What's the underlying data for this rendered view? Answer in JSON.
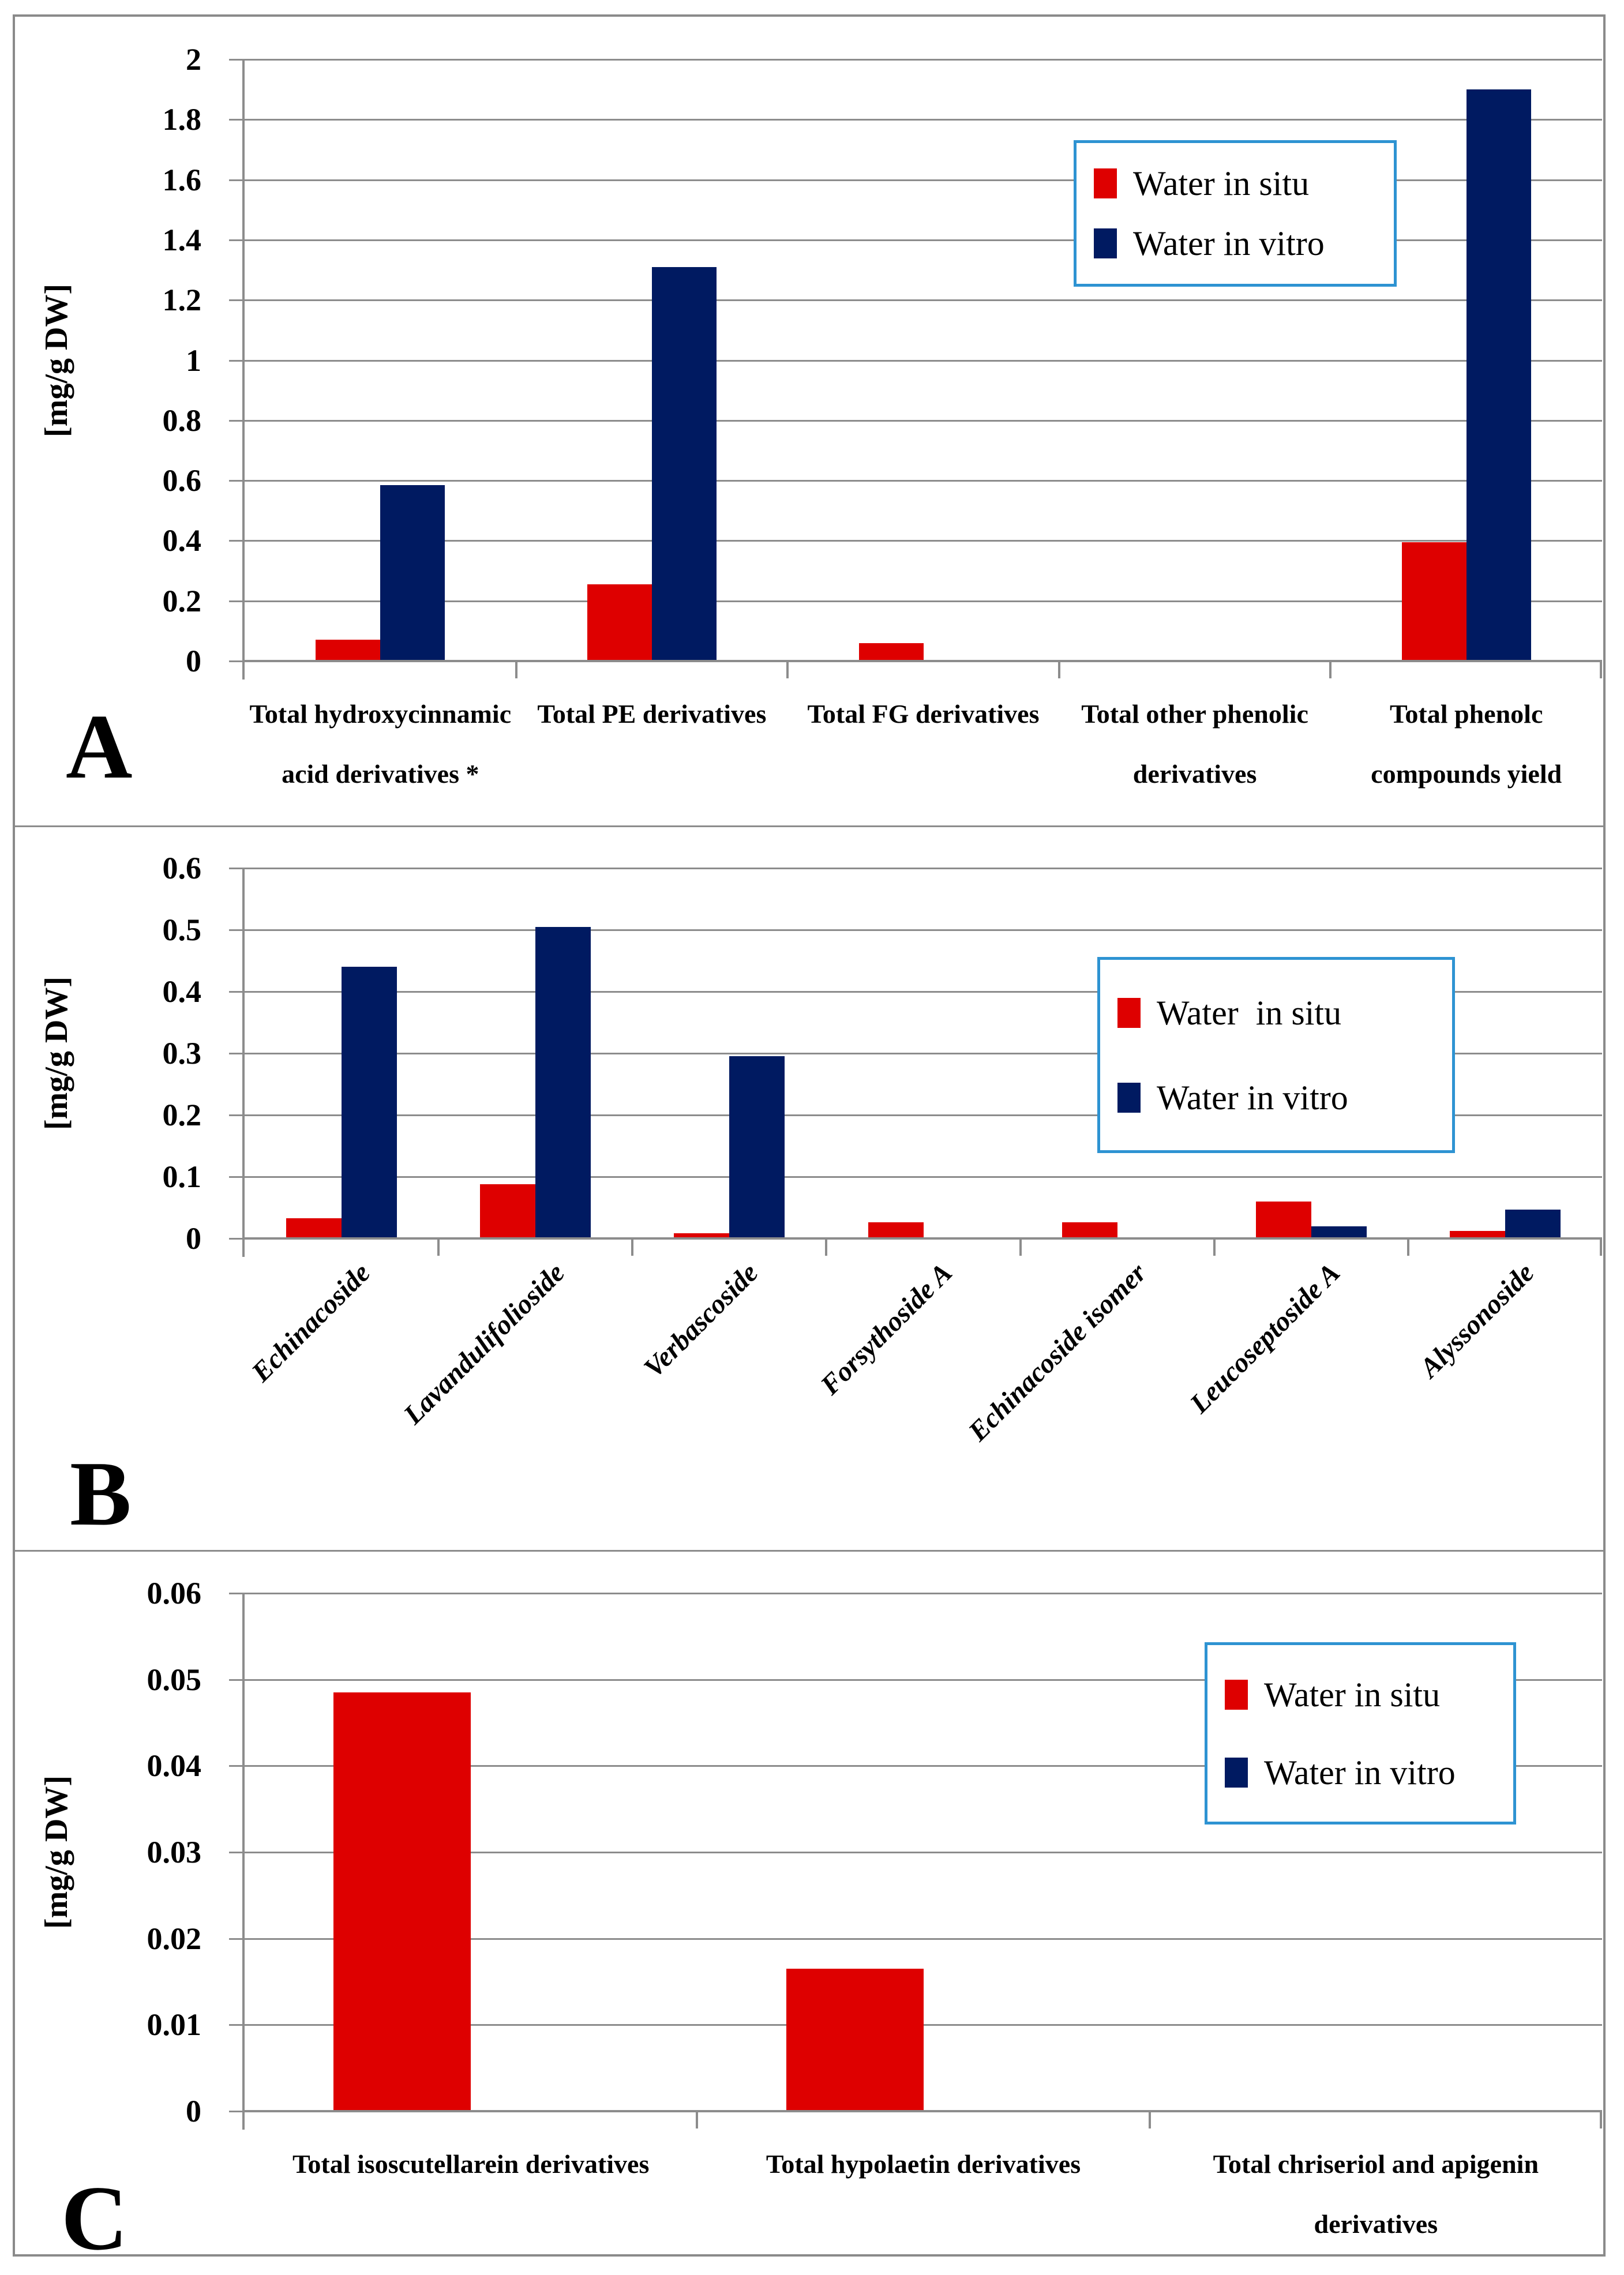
{
  "colors": {
    "in_situ": "#DE0000",
    "in_vitro": "#001A61",
    "gridline": "#8C8C8C",
    "frame_border": "#8A8A8A",
    "legend_border": "#2E93D2"
  },
  "chart_data": [
    {
      "type": "bar",
      "panel_letter": "A",
      "title": "",
      "ylabel": "[mg/g DW]",
      "xlabel": "",
      "ylim": [
        0,
        2
      ],
      "grid": true,
      "y_tick_labels": [
        "2",
        "1.8",
        "1.6",
        "1.4",
        "1.2",
        "1",
        "0.8",
        "0.6",
        "0.4",
        "0.2",
        "0"
      ],
      "categories": [
        "Total hydroxycinnamic acid derivatives *",
        "Total PE derivatives",
        "Total FG derivatives",
        "Total other phenolic derivatives",
        "Total phenolc compounds yield"
      ],
      "series": [
        {
          "name": "Water in situ",
          "values": [
            0.07,
            0.255,
            0.06,
            0,
            0.395
          ]
        },
        {
          "name": "Water in vitro",
          "values": [
            0.585,
            1.31,
            0,
            0,
            1.9
          ]
        }
      ],
      "legend": {
        "position": "top-right-inset",
        "items": [
          {
            "label": "Water in situ",
            "color": "#DE0000"
          },
          {
            "label": "Water in vitro",
            "color": "#001A61"
          }
        ]
      }
    },
    {
      "type": "bar",
      "panel_letter": "B",
      "title": "",
      "ylabel": "[mg/g DW]",
      "xlabel": "",
      "ylim": [
        0,
        0.6
      ],
      "grid": true,
      "y_tick_labels": [
        "0.6",
        "0.5",
        "0.4",
        "0.3",
        "0.2",
        "0.1",
        "0"
      ],
      "categories": [
        "Echinacoside",
        "Lavandulifolioside",
        "Verbascoside",
        "Forsythoside A",
        "Echinacoside isomer",
        "Leucoseptoside A",
        "Alyssonoside"
      ],
      "series": [
        {
          "name": "Water  in situ",
          "values": [
            0.033,
            0.088,
            0.008,
            0.026,
            0.026,
            0.06,
            0.012
          ]
        },
        {
          "name": "Water in vitro",
          "values": [
            0.44,
            0.505,
            0.295,
            0,
            0,
            0.02,
            0.047
          ]
        }
      ],
      "legend": {
        "position": "upper-right-inset",
        "items": [
          {
            "label": "Water  in situ",
            "color": "#DE0000"
          },
          {
            "label": "Water in vitro",
            "color": "#001A61"
          }
        ]
      }
    },
    {
      "type": "bar",
      "panel_letter": "C",
      "title": "",
      "ylabel": "[mg/g DW]",
      "xlabel": "",
      "ylim": [
        0,
        0.06
      ],
      "grid": true,
      "y_tick_labels": [
        "0.06",
        "0.05",
        "0.04",
        "0.03",
        "0.02",
        "0.01",
        "0"
      ],
      "categories": [
        "Total isoscutellarein derivatives",
        "Total hypolaetin derivatives",
        "Total chriseriol and apigenin derivatives"
      ],
      "series": [
        {
          "name": "Water in situ",
          "values": [
            0.0485,
            0.0165,
            0
          ]
        },
        {
          "name": "Water in vitro",
          "values": [
            0,
            0,
            0
          ]
        }
      ],
      "legend": {
        "position": "top-right-inset",
        "items": [
          {
            "label": "Water in situ",
            "color": "#DE0000"
          },
          {
            "label": "Water in vitro",
            "color": "#001A61"
          }
        ]
      }
    }
  ]
}
